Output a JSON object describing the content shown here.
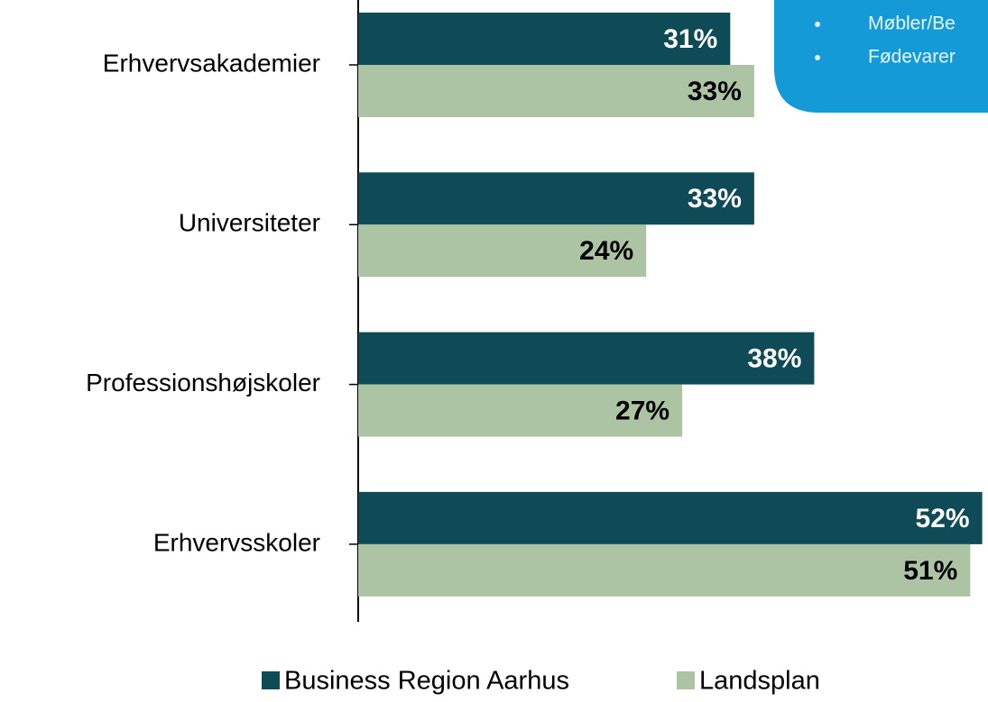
{
  "chart_data": {
    "type": "bar",
    "orientation": "horizontal",
    "categories": [
      "Erhvervsakademier",
      "Universiteter",
      "Professionshøjskoler",
      "Erhvervsskoler"
    ],
    "series": [
      {
        "name": "Business Region Aarhus",
        "color": "#0f4a57",
        "values": [
          31,
          33,
          38,
          52
        ],
        "value_labels": [
          "31%",
          "33%",
          "38%",
          "52%"
        ]
      },
      {
        "name": "Landsplan",
        "color": "#adc4a4",
        "values": [
          33,
          24,
          27,
          51
        ],
        "value_labels": [
          "33%",
          "24%",
          "27%",
          "51%"
        ]
      }
    ],
    "annotation": {
      "items": [
        "Møbler/Be",
        "Fødevarer"
      ]
    }
  }
}
